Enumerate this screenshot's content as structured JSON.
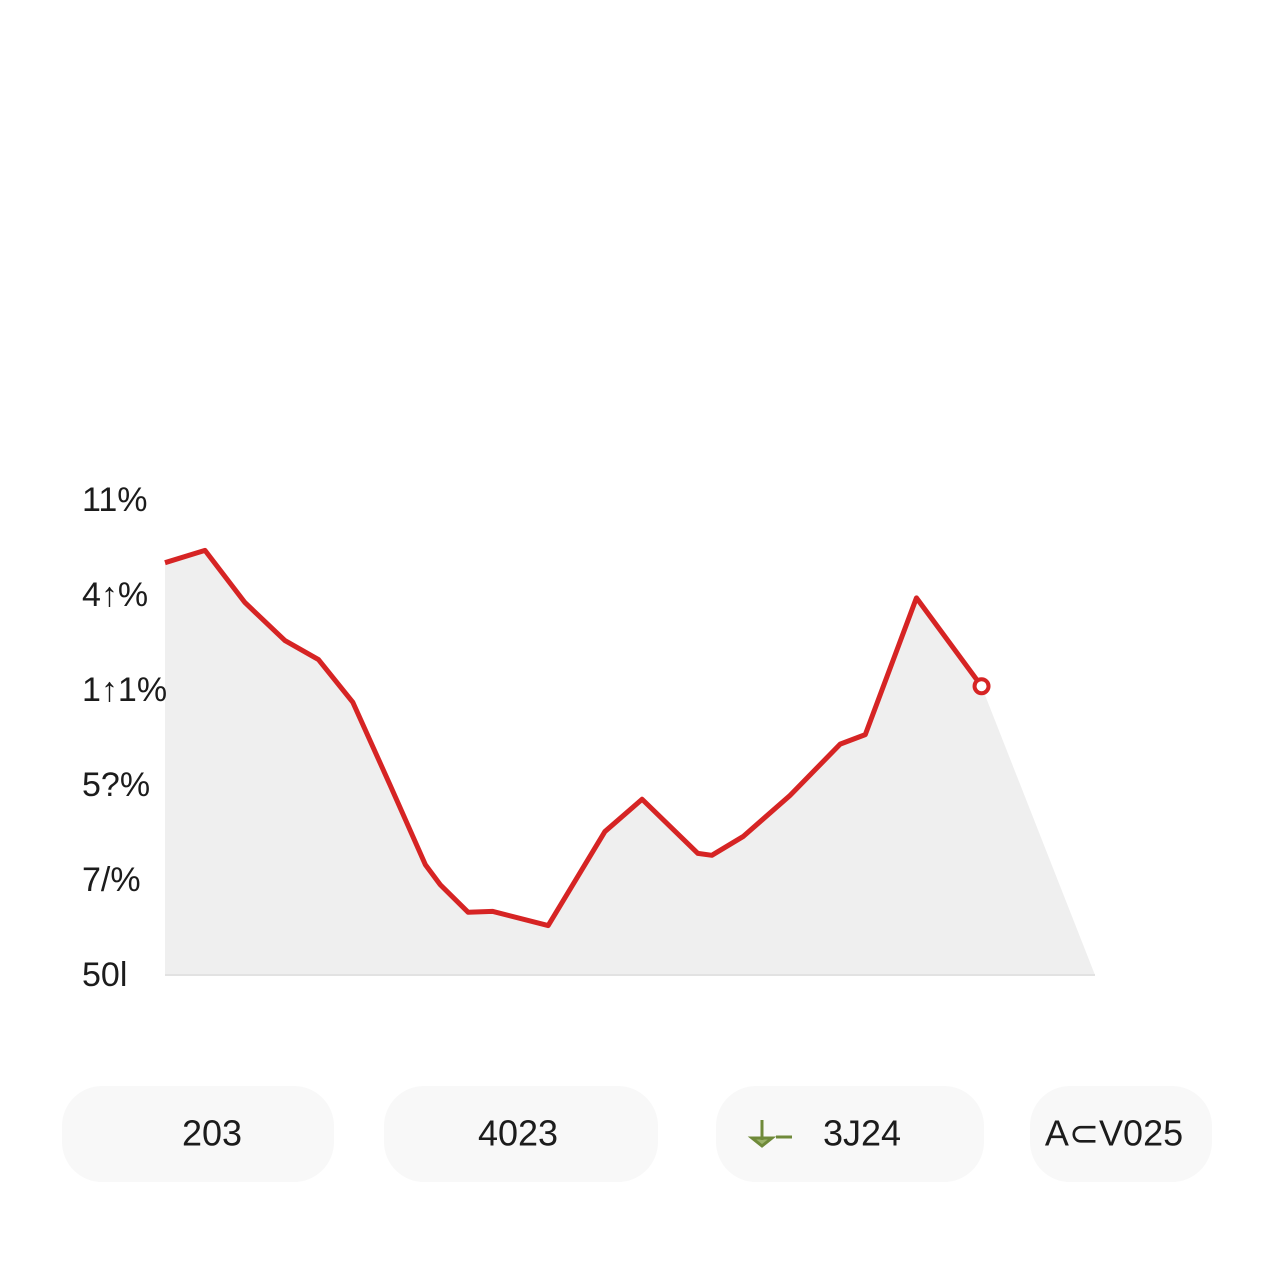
{
  "chart_data": {
    "type": "area",
    "x": [
      0,
      0.43,
      0.86,
      1.29,
      1.65,
      2.02,
      2.42,
      2.8,
      2.96,
      3.26,
      3.52,
      4.12,
      4.73,
      5.13,
      5.73,
      5.88,
      6.22,
      6.72,
      7.26,
      7.53,
      8.08,
      8.78
    ],
    "series": [
      {
        "color": "#d62424",
        "values": [
          4.34,
          4.47,
          3.92,
          3.52,
          3.32,
          2.87,
          2.0,
          1.16,
          0.95,
          0.66,
          0.67,
          0.52,
          1.51,
          1.85,
          1.28,
          1.26,
          1.46,
          1.89,
          2.43,
          2.53,
          3.97,
          3.04
        ]
      }
    ],
    "xlim": [
      0,
      10
    ],
    "ylim": [
      0,
      5
    ],
    "yticks": [
      {
        "value": 5,
        "label": "11%"
      },
      {
        "value": 4,
        "label": "4↑%"
      },
      {
        "value": 3,
        "label": "1↑1%"
      },
      {
        "value": 2,
        "label": "5?%"
      },
      {
        "value": 1,
        "label": "7/%"
      },
      {
        "value": 0,
        "label": "50l"
      }
    ],
    "fill_color": "#efefef",
    "periods": [
      "203",
      "4023",
      "3J24",
      "A⊂V025"
    ]
  }
}
